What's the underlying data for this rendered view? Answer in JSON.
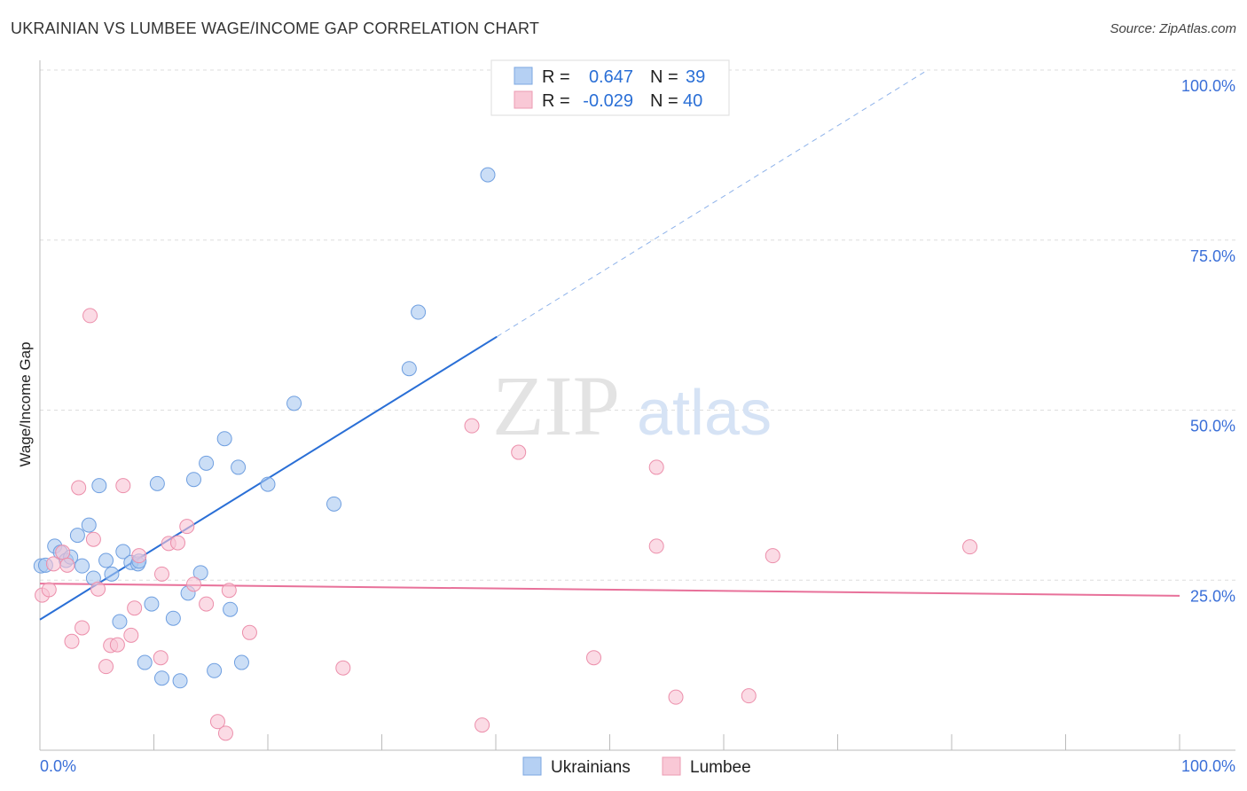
{
  "chart_data": {
    "type": "scatter",
    "title": "UKRAINIAN VS LUMBEE WAGE/INCOME GAP CORRELATION CHART",
    "source": "Source: ZipAtlas.com",
    "xlabel": "",
    "ylabel": "Wage/Income Gap",
    "xlim": [
      0,
      100
    ],
    "ylim": [
      0,
      100
    ],
    "x_tick_labels": [
      "0.0%",
      "100.0%"
    ],
    "y_tick_labels": [
      "100.0%",
      "75.0%",
      "50.0%",
      "25.0%"
    ],
    "y_tick_values": [
      100,
      75,
      50,
      25
    ],
    "grid": true,
    "legend_stats": [
      {
        "r_label": "R =",
        "r": "0.647",
        "n_label": "N =",
        "n": "39"
      },
      {
        "r_label": "R =",
        "r": "-0.029",
        "n_label": "N =",
        "n": "40"
      }
    ],
    "series": [
      {
        "name": "Ukrainians",
        "color": "#a9c8f0",
        "stroke": "#6f9fe0",
        "line_color": "#2a6fd6",
        "trend": {
          "x0": 0,
          "y0": 19.2,
          "x1": 40.1,
          "y1": 60.8,
          "dashed_to_x": 77.6
        },
        "points": [
          [
            0.1,
            27.1
          ],
          [
            0.5,
            27.2
          ],
          [
            1.3,
            30.0
          ],
          [
            1.8,
            29.1
          ],
          [
            2.3,
            27.9
          ],
          [
            2.7,
            28.4
          ],
          [
            3.3,
            31.6
          ],
          [
            3.7,
            27.1
          ],
          [
            4.3,
            33.1
          ],
          [
            4.7,
            25.3
          ],
          [
            5.2,
            38.9
          ],
          [
            5.8,
            27.9
          ],
          [
            6.3,
            25.9
          ],
          [
            7.0,
            18.9
          ],
          [
            7.3,
            29.2
          ],
          [
            8.0,
            27.6
          ],
          [
            8.6,
            27.4
          ],
          [
            8.7,
            27.8
          ],
          [
            9.2,
            12.9
          ],
          [
            9.8,
            21.5
          ],
          [
            10.3,
            39.2
          ],
          [
            10.7,
            10.6
          ],
          [
            11.7,
            19.4
          ],
          [
            12.3,
            10.2
          ],
          [
            13.0,
            23.1
          ],
          [
            13.5,
            39.8
          ],
          [
            14.1,
            26.1
          ],
          [
            14.6,
            42.2
          ],
          [
            15.3,
            11.7
          ],
          [
            16.2,
            45.8
          ],
          [
            16.7,
            20.7
          ],
          [
            17.4,
            41.6
          ],
          [
            17.7,
            12.9
          ],
          [
            20.0,
            39.1
          ],
          [
            22.3,
            51.0
          ],
          [
            25.8,
            36.2
          ],
          [
            32.4,
            56.1
          ],
          [
            33.2,
            64.4
          ],
          [
            39.3,
            84.6
          ]
        ]
      },
      {
        "name": "Lumbee",
        "color": "#f8c3d3",
        "stroke": "#ec8fab",
        "line_color": "#e8719a",
        "trend": {
          "x0": 0,
          "y0": 24.5,
          "x1": 100,
          "y1": 22.7
        },
        "points": [
          [
            0.2,
            22.8
          ],
          [
            0.8,
            23.6
          ],
          [
            1.2,
            27.4
          ],
          [
            2.0,
            29.1
          ],
          [
            2.4,
            27.2
          ],
          [
            2.8,
            16.0
          ],
          [
            3.4,
            38.6
          ],
          [
            3.7,
            18.0
          ],
          [
            4.4,
            63.9
          ],
          [
            4.7,
            31.0
          ],
          [
            5.1,
            23.7
          ],
          [
            5.8,
            12.3
          ],
          [
            6.2,
            15.4
          ],
          [
            6.8,
            15.5
          ],
          [
            7.3,
            38.9
          ],
          [
            8.0,
            16.9
          ],
          [
            8.3,
            20.9
          ],
          [
            8.7,
            28.6
          ],
          [
            10.6,
            13.6
          ],
          [
            10.7,
            25.9
          ],
          [
            11.3,
            30.4
          ],
          [
            12.1,
            30.5
          ],
          [
            12.9,
            32.9
          ],
          [
            13.5,
            24.4
          ],
          [
            14.6,
            21.5
          ],
          [
            15.6,
            4.2
          ],
          [
            16.3,
            2.5
          ],
          [
            16.6,
            23.5
          ],
          [
            18.4,
            17.3
          ],
          [
            26.6,
            12.1
          ],
          [
            37.9,
            47.7
          ],
          [
            38.8,
            3.7
          ],
          [
            42.0,
            43.8
          ],
          [
            48.6,
            13.6
          ],
          [
            54.1,
            41.6
          ],
          [
            54.1,
            30.0
          ],
          [
            55.8,
            7.8
          ],
          [
            62.2,
            8.0
          ],
          [
            64.3,
            28.6
          ],
          [
            81.6,
            29.9
          ]
        ]
      }
    ]
  },
  "watermark": "ZIPatlas"
}
